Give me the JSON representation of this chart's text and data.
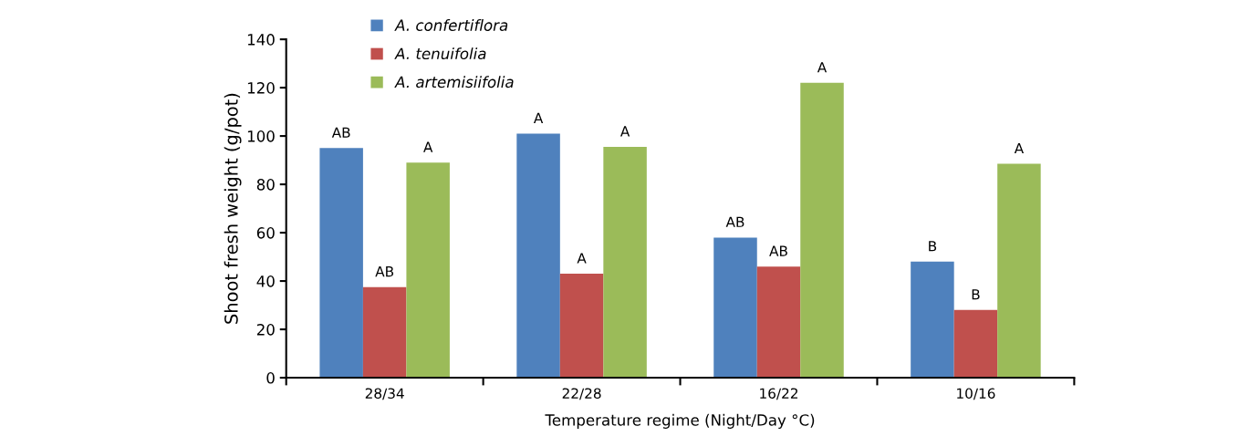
{
  "chart_data": {
    "type": "bar",
    "xlabel": "Temperature regime (Night/Day °C)",
    "ylabel": "Shoot fresh weight (g/pot)",
    "categories": [
      "28/34",
      "22/28",
      "16/22",
      "10/16"
    ],
    "series": [
      {
        "name": "A. confertiflora",
        "color": "#4f81bd",
        "values": [
          95,
          101,
          58,
          48
        ],
        "value_labels": [
          "AB",
          "A",
          "AB",
          "B"
        ]
      },
      {
        "name": "A. tenuifolia",
        "color": "#c0504d",
        "values": [
          37.5,
          43,
          46,
          28
        ],
        "value_labels": [
          "AB",
          "A",
          "AB",
          "B"
        ]
      },
      {
        "name": "A. artemisiifolia",
        "color": "#9bbb59",
        "values": [
          89,
          95.5,
          122,
          88.5
        ],
        "value_labels": [
          "A",
          "A",
          "A",
          "A"
        ]
      }
    ],
    "ylim": [
      0,
      140
    ],
    "yticks": [
      0,
      20,
      40,
      60,
      80,
      100,
      120,
      140
    ],
    "grid": false,
    "legend": "top left"
  }
}
